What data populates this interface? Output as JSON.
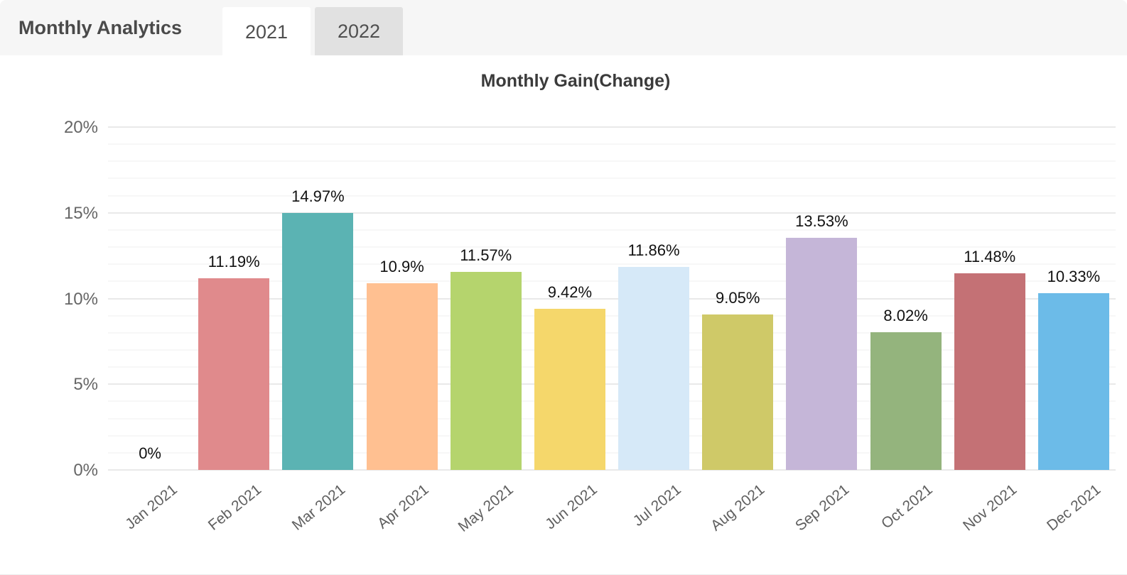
{
  "header": {
    "title": "Monthly Analytics",
    "tabs": [
      {
        "label": "2021",
        "active": true
      },
      {
        "label": "2022",
        "active": false
      }
    ]
  },
  "colors": {
    "header_bg": "#f6f6f6",
    "active_tab_bg": "#ffffff",
    "inactive_tab_bg": "#e1e1e1",
    "major_gridline": "#e9e9e9",
    "minor_gridline": "#f7f7f7"
  },
  "chart_data": {
    "type": "bar",
    "title": "Monthly Gain(Change)",
    "categories": [
      "Jan 2021",
      "Feb 2021",
      "Mar 2021",
      "Apr 2021",
      "May 2021",
      "Jun 2021",
      "Jul 2021",
      "Aug 2021",
      "Sep 2021",
      "Oct 2021",
      "Nov 2021",
      "Dec 2021"
    ],
    "values": [
      0,
      11.19,
      14.97,
      10.9,
      11.57,
      9.42,
      11.86,
      9.05,
      13.53,
      8.02,
      11.48,
      10.33
    ],
    "value_labels": [
      "0%",
      "11.19%",
      "14.97%",
      "10.9%",
      "11.57%",
      "9.42%",
      "11.86%",
      "9.05%",
      "13.53%",
      "8.02%",
      "11.48%",
      "10.33%"
    ],
    "bar_colors": [
      "",
      "#e08a8c",
      "#5bb3b3",
      "#ffc091",
      "#b5d46d",
      "#f5d76b",
      "#d6e9f8",
      "#cfc968",
      "#c5b6d8",
      "#94b47d",
      "#c47175",
      "#6cbbe8"
    ],
    "xlabel": "",
    "ylabel": "",
    "ylim": [
      0,
      20
    ],
    "y_ticks": [
      "0%",
      "5%",
      "10%",
      "15%",
      "20%"
    ],
    "y_tick_values": [
      0,
      5,
      10,
      15,
      20
    ],
    "minor_grid_step": 1,
    "grid": true,
    "legend_position": "none"
  }
}
